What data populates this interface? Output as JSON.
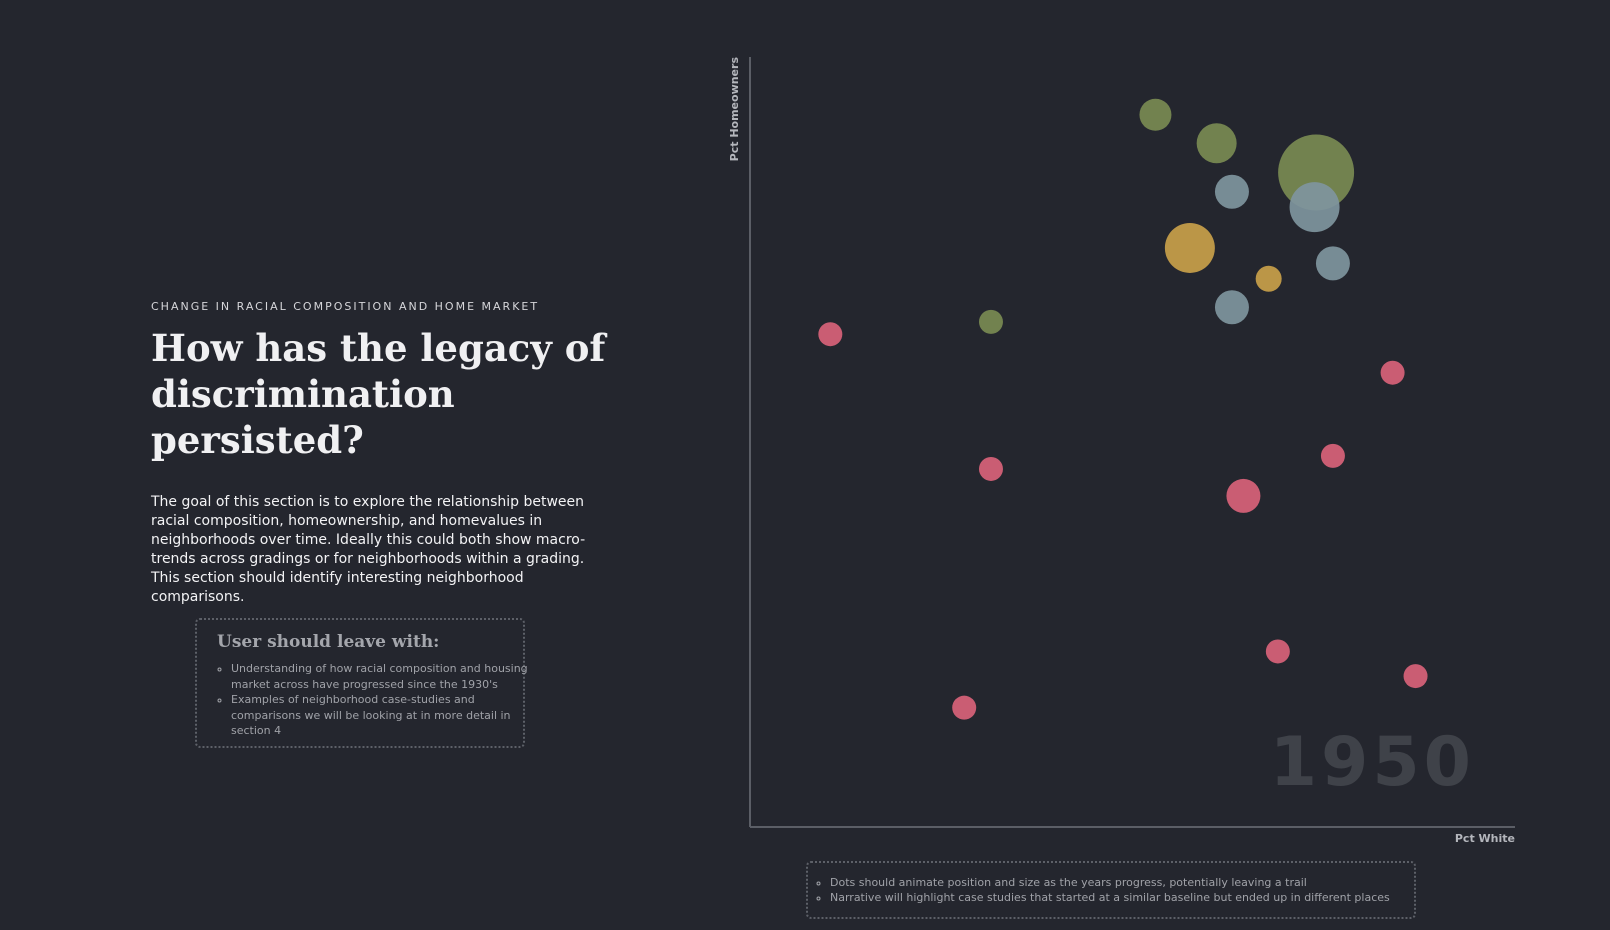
{
  "section": {
    "eyebrow": "CHANGE IN RACIAL COMPOSITION AND HOME MARKET",
    "headline_line1": "How has the legacy of",
    "headline_line2": "discrimination persisted?",
    "body": "The goal of this section is to explore the relationship between racial composition, homeownership, and homevalues in neighborhoods over time. Ideally this could both show macro-trends across gradings or for neighborhoods within a grading. This section should identify interesting neighborhood comparisons."
  },
  "takeaway": {
    "title": "User should leave with:",
    "items": [
      "Understanding of how racial composition and housing market across have progressed since the 1930's",
      "Examples of neighborhood case-studies and comparisons we will be looking at in more detail in section 4"
    ]
  },
  "notes": {
    "items": [
      "Dots should animate position and size as the years progress, potentially leaving a trail",
      "Narrative will highlight case studies that started at a similar baseline but ended up in different places"
    ]
  },
  "colors": {
    "green": "#7a8a52",
    "blue": "#7f959e",
    "gold": "#c9a04a",
    "red": "#d9627a",
    "axis": "#5b5e66"
  },
  "chart_data": {
    "type": "scatter",
    "xlabel": "Pct White",
    "ylabel": "Pct Homeowners",
    "year_label": "1950",
    "xlim": [
      0,
      1
    ],
    "ylim": [
      0,
      1
    ],
    "points": [
      {
        "x": 0.53,
        "y": 0.925,
        "size": 16,
        "color": "green"
      },
      {
        "x": 0.61,
        "y": 0.888,
        "size": 20,
        "color": "green"
      },
      {
        "x": 0.74,
        "y": 0.85,
        "size": 38,
        "color": "green"
      },
      {
        "x": 0.315,
        "y": 0.656,
        "size": 12,
        "color": "green"
      },
      {
        "x": 0.63,
        "y": 0.825,
        "size": 17,
        "color": "blue"
      },
      {
        "x": 0.738,
        "y": 0.805,
        "size": 25,
        "color": "blue"
      },
      {
        "x": 0.762,
        "y": 0.732,
        "size": 17,
        "color": "blue"
      },
      {
        "x": 0.63,
        "y": 0.675,
        "size": 17,
        "color": "blue"
      },
      {
        "x": 0.575,
        "y": 0.752,
        "size": 25,
        "color": "gold"
      },
      {
        "x": 0.678,
        "y": 0.712,
        "size": 13,
        "color": "gold"
      },
      {
        "x": 0.105,
        "y": 0.64,
        "size": 12,
        "color": "red"
      },
      {
        "x": 0.84,
        "y": 0.59,
        "size": 12,
        "color": "red"
      },
      {
        "x": 0.762,
        "y": 0.482,
        "size": 12,
        "color": "red"
      },
      {
        "x": 0.315,
        "y": 0.465,
        "size": 12,
        "color": "red"
      },
      {
        "x": 0.645,
        "y": 0.43,
        "size": 17,
        "color": "red"
      },
      {
        "x": 0.69,
        "y": 0.228,
        "size": 12,
        "color": "red"
      },
      {
        "x": 0.87,
        "y": 0.196,
        "size": 12,
        "color": "red"
      },
      {
        "x": 0.28,
        "y": 0.155,
        "size": 12,
        "color": "red"
      }
    ]
  }
}
